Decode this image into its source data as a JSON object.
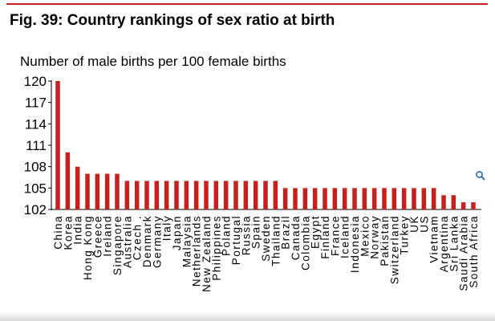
{
  "figure": {
    "title": "Fig. 39: Country rankings of sex ratio at birth"
  },
  "colors": {
    "accent": "#c8211c",
    "bar": "#c8211c"
  },
  "icons": {
    "zoom": "magnifier-icon"
  },
  "chart_data": {
    "type": "bar",
    "title": "Fig. 39: Country rankings of sex ratio at birth",
    "ylabel": "Number of male births per 100 female births",
    "xlabel": "",
    "ylim": [
      102,
      120
    ],
    "yticks": [
      120,
      117,
      114,
      111,
      108,
      105,
      102
    ],
    "grid": false,
    "categories": [
      "China",
      "Korea",
      "India",
      "Hong Kong",
      "Greece",
      "Ireland",
      "Singapore",
      "Australia",
      "Czech .",
      "Denmark",
      "Germany",
      "Italy",
      "Japan",
      "Malaysia",
      "Netherlands",
      "New Zealand",
      "Philippines",
      "Poland",
      "Portugal",
      "Russia",
      "Spain",
      "Sweden",
      "Thailand",
      "Brazil",
      "Canada",
      "Colombia",
      "Egypt",
      "Finland",
      "France",
      "Iceland",
      "Indonesia",
      "Mexico",
      "Norway",
      "Pakistan",
      "Switzerland",
      "Turkey",
      "UK",
      "US",
      "Vietnam",
      "Argentina",
      "Sri Lanka",
      "Saudi Arabia",
      "South Africa"
    ],
    "values": [
      120,
      110,
      108,
      107,
      107,
      107,
      107,
      106,
      106,
      106,
      106,
      106,
      106,
      106,
      106,
      106,
      106,
      106,
      106,
      106,
      106,
      106,
      106,
      105,
      105,
      105,
      105,
      105,
      105,
      105,
      105,
      105,
      105,
      105,
      105,
      105,
      105,
      105,
      105,
      104,
      104,
      103,
      103
    ]
  }
}
